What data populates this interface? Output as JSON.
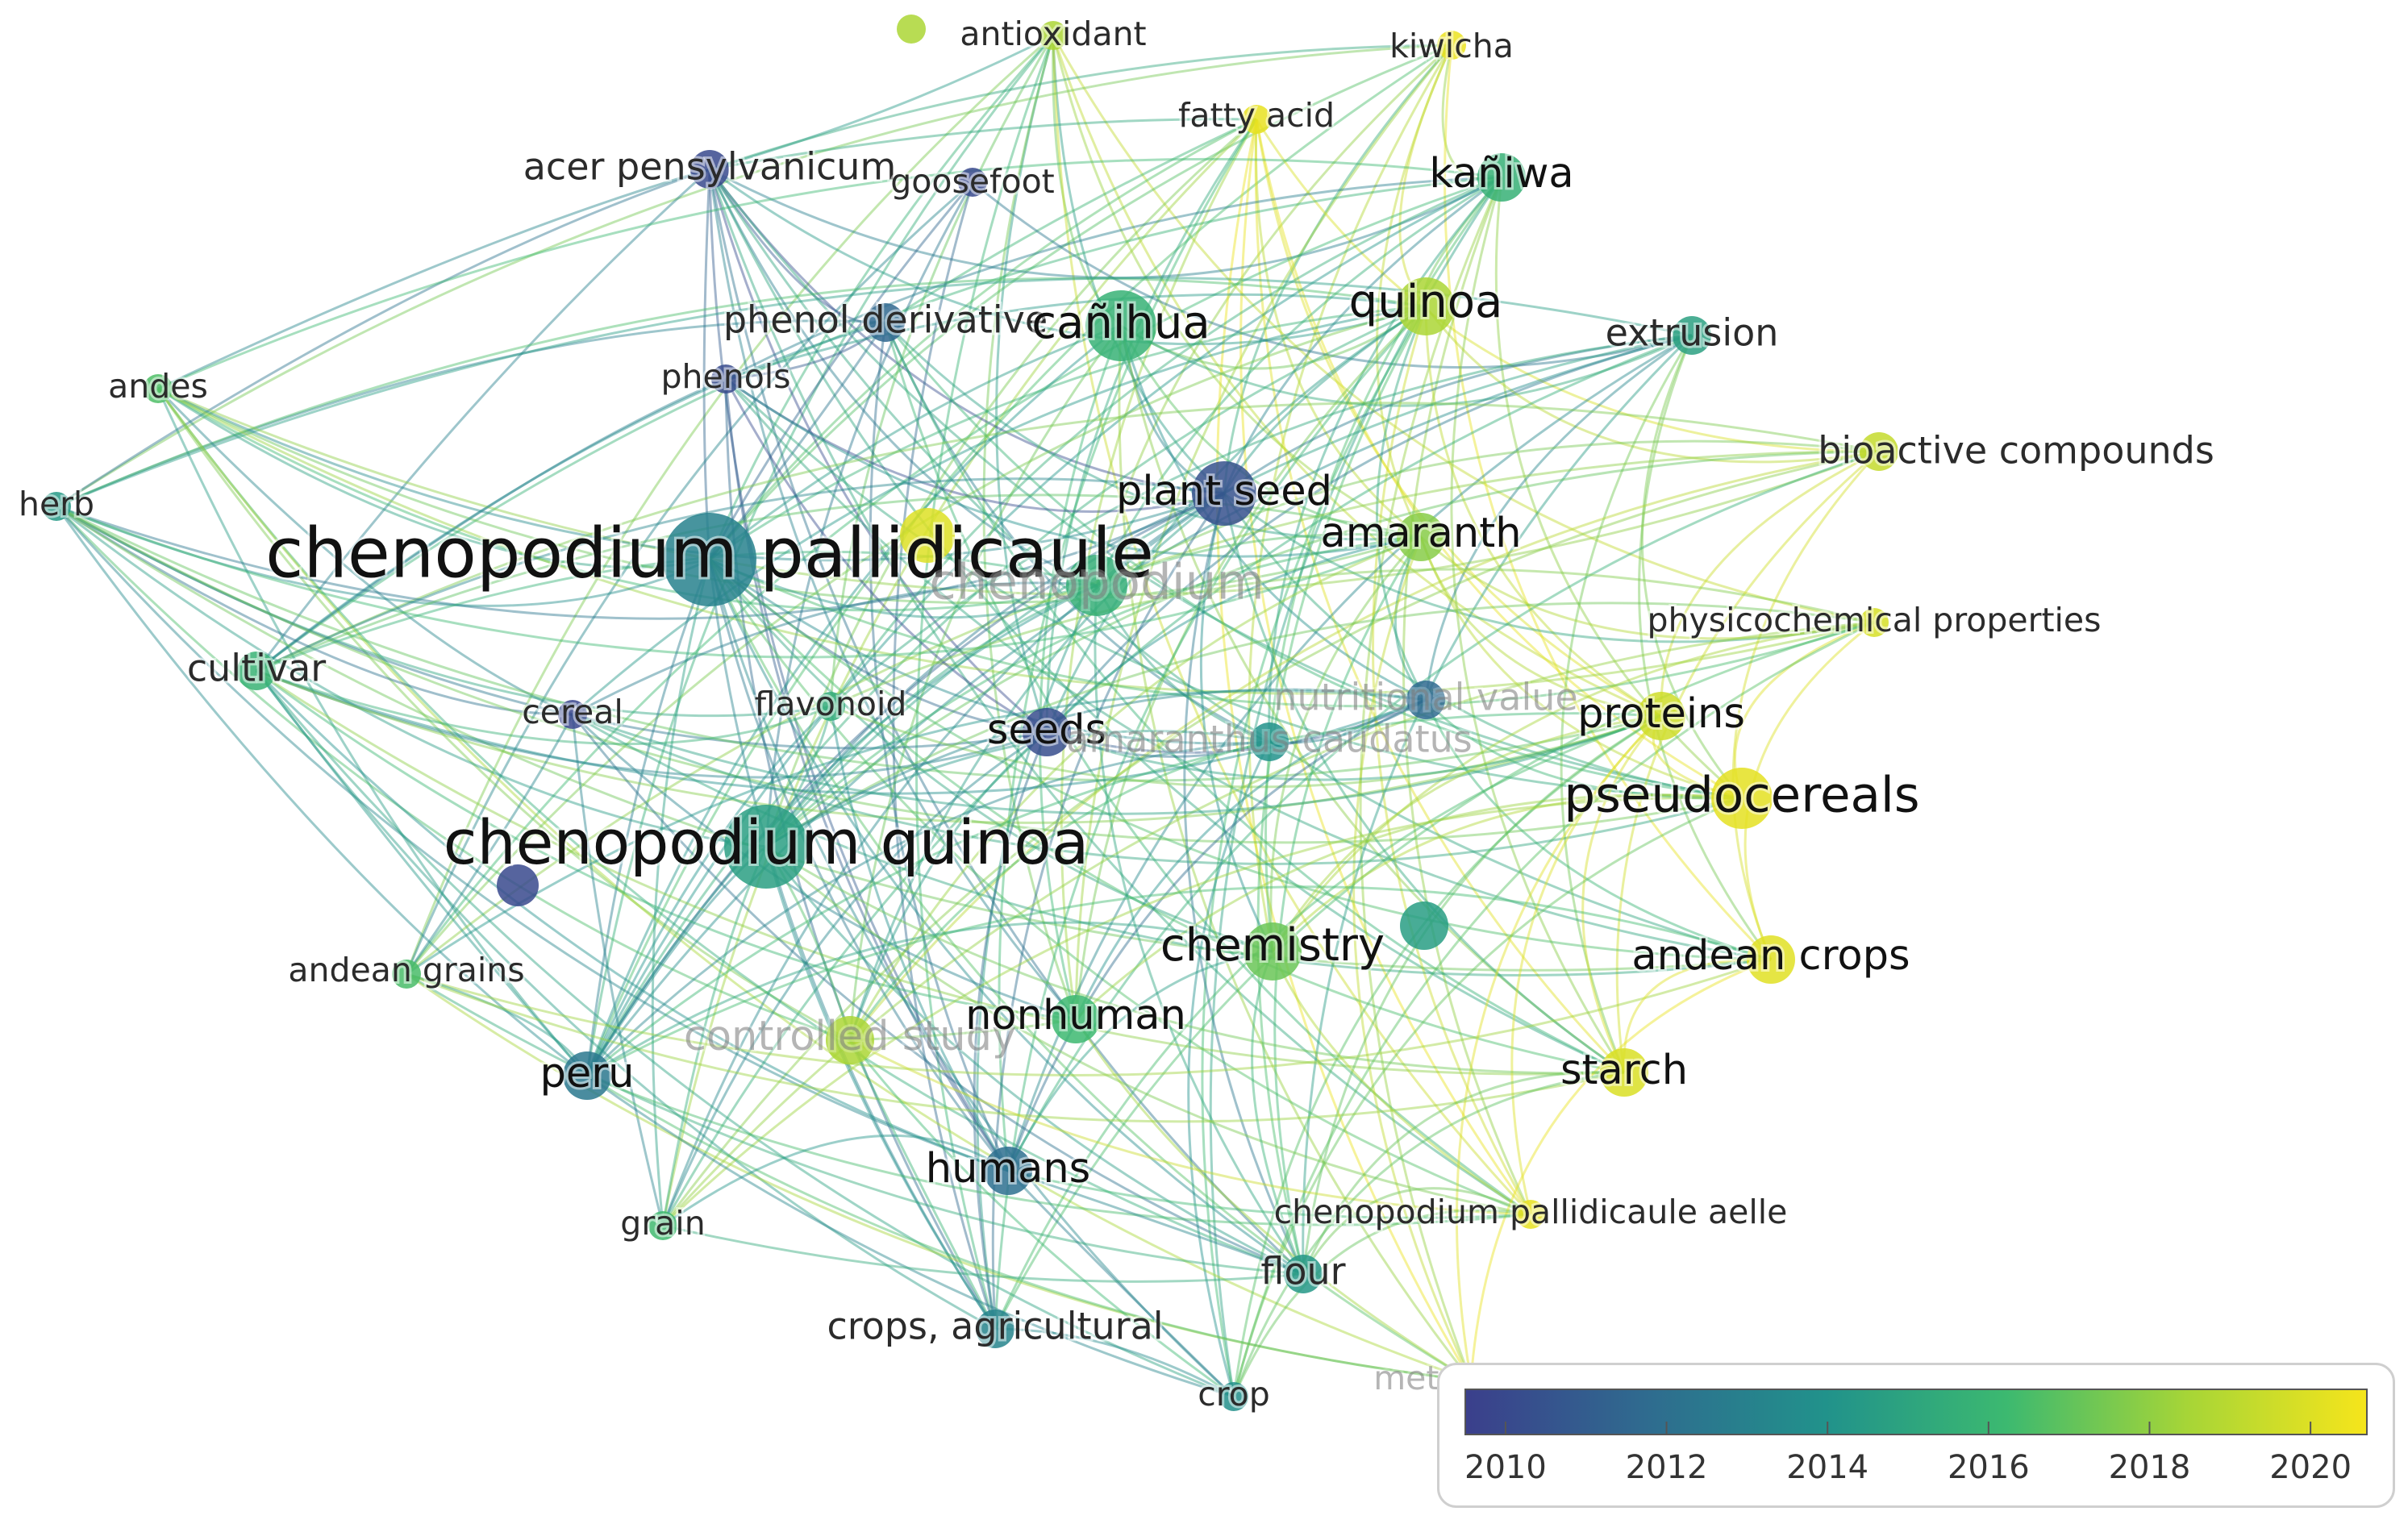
{
  "chart_data": {
    "type": "network",
    "title": "",
    "color_scale": {
      "label_ticks": [
        "2010",
        "2012",
        "2014",
        "2016",
        "2018",
        "2020"
      ],
      "min_year": 2009.5,
      "max_year": 2020.7,
      "colors": [
        "#3b3f8c",
        "#2f6b8f",
        "#21928b",
        "#3cb970",
        "#a6d537",
        "#f6e51b"
      ]
    },
    "nodes": [
      {
        "label": "antioxidant",
        "weight": 1,
        "year": 2018.6,
        "faded": false
      },
      {
        "label": "kiwicha",
        "weight": 1,
        "year": 2020.4,
        "faded": false
      },
      {
        "label": "fatty acid",
        "weight": 1,
        "year": 2020.3,
        "faded": false
      },
      {
        "label": "acer pensylvanicum",
        "weight": 2,
        "year": 2010.0,
        "faded": false
      },
      {
        "label": "goosefoot",
        "weight": 1,
        "year": 2010.0,
        "faded": false
      },
      {
        "label": "kañiwa",
        "weight": 3,
        "year": 2015.7,
        "faded": false
      },
      {
        "label": "phenol derivative",
        "weight": 2,
        "year": 2011.6,
        "faded": false
      },
      {
        "label": "cañihua",
        "weight": 4,
        "year": 2015.8,
        "faded": false
      },
      {
        "label": "quinoa",
        "weight": 4,
        "year": 2018.6,
        "faded": false
      },
      {
        "label": "extrusion",
        "weight": 2,
        "year": 2014.8,
        "faded": false
      },
      {
        "label": "andes",
        "weight": 1,
        "year": 2016.6,
        "faded": false
      },
      {
        "label": "phenols",
        "weight": 1,
        "year": 2010.1,
        "faded": false
      },
      {
        "label": "bioactive compounds",
        "weight": 2,
        "year": 2019.3,
        "faded": false
      },
      {
        "label": "herb",
        "weight": 1,
        "year": 2014.4,
        "faded": false
      },
      {
        "label": "plant seed",
        "weight": 3,
        "year": 2010.4,
        "faded": false
      },
      {
        "label": "chenopodium pallidicaule",
        "weight": 10,
        "year": 2013.0,
        "faded": false
      },
      {
        "label": "amaranth",
        "weight": 3,
        "year": 2017.8,
        "faded": false
      },
      {
        "label": "chenopodium",
        "weight": 5,
        "year": 2015.6,
        "faded": true
      },
      {
        "label": "physicochemical properties",
        "weight": 1,
        "year": 2019.8,
        "faded": false
      },
      {
        "label": "cultivar",
        "weight": 2,
        "year": 2015.9,
        "faded": false
      },
      {
        "label": "cereal",
        "weight": 1,
        "year": 2009.9,
        "faded": false
      },
      {
        "label": "flavonoid",
        "weight": 1,
        "year": 2015.5,
        "faded": false
      },
      {
        "label": "seeds",
        "weight": 3,
        "year": 2010.2,
        "faded": false
      },
      {
        "label": "amaranthus caudatus",
        "weight": 2,
        "year": 2014.0,
        "faded": true
      },
      {
        "label": "nutritional value",
        "weight": 2,
        "year": 2011.7,
        "faded": true
      },
      {
        "label": "proteins",
        "weight": 3,
        "year": 2019.6,
        "faded": false
      },
      {
        "label": "pseudocereals",
        "weight": 5,
        "year": 2020.2,
        "faded": false
      },
      {
        "label": "chenopodium quinoa",
        "weight": 8,
        "year": 2014.7,
        "faded": false
      },
      {
        "label": "andean grains",
        "weight": 1,
        "year": 2016.5,
        "faded": false
      },
      {
        "label": "chemistry",
        "weight": 4,
        "year": 2017.2,
        "faded": false
      },
      {
        "label": "andean crops",
        "weight": 3,
        "year": 2020.1,
        "faded": false
      },
      {
        "label": "controlled study",
        "weight": 3,
        "year": 2018.6,
        "faded": true
      },
      {
        "label": "nonhuman",
        "weight": 3,
        "year": 2016.2,
        "faded": false
      },
      {
        "label": "peru",
        "weight": 3,
        "year": 2012.5,
        "faded": false
      },
      {
        "label": "starch",
        "weight": 3,
        "year": 2019.9,
        "faded": false
      },
      {
        "label": "humans",
        "weight": 3,
        "year": 2012.0,
        "faded": false
      },
      {
        "label": "chenopodium pallidicaule aelle",
        "weight": 1,
        "year": 2020.3,
        "faded": false
      },
      {
        "label": "grain",
        "weight": 1,
        "year": 2016.3,
        "faded": false
      },
      {
        "label": "flour",
        "weight": 2,
        "year": 2014.3,
        "faded": false
      },
      {
        "label": "crops, agricultural",
        "weight": 2,
        "year": 2013.2,
        "faded": false
      },
      {
        "label": "crop",
        "weight": 1,
        "year": 2013.8,
        "faded": false
      },
      {
        "label": "metabolism",
        "weight": 1,
        "year": 2020.5,
        "faded": true
      }
    ]
  }
}
